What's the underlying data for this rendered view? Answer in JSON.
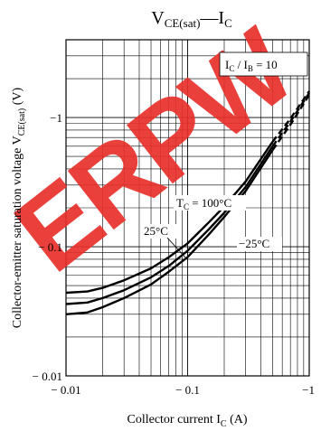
{
  "chart_data": {
    "type": "line",
    "title": "V_CE(sat) — I_C",
    "title_parts": {
      "main": "V",
      "main_sub": "CE(sat)",
      "dash": "—",
      "second": "I",
      "second_sub": "C"
    },
    "xlabel": "Collector current  I_C  (A)",
    "xlabel_parts": {
      "text": "Collector current  I",
      "sub": "C",
      "unit": "  (A)"
    },
    "ylabel": "Collector-emitter saturation voltage  V_CE(sat)  (V)",
    "ylabel_parts": {
      "text": "Collector-emitter saturation voltage  V",
      "sub": "CE(sat)",
      "unit": "  (V)"
    },
    "x_scale": "log",
    "y_scale": "log",
    "xlim": [
      -0.01,
      -1
    ],
    "ylim": [
      -0.01,
      -4
    ],
    "x_ticks": [
      -0.01,
      -0.1,
      -1
    ],
    "x_tick_labels": [
      "− 0.01",
      "− 0.1",
      "−1"
    ],
    "y_ticks": [
      -0.01,
      -0.1,
      -1
    ],
    "y_tick_labels": [
      "− 0.01",
      "− 0.1",
      "−1"
    ],
    "grid": true,
    "condition_parts": {
      "i1": "I",
      "i1_sub": "C",
      "slash": " / ",
      "i2": "I",
      "i2_sub": "B",
      "rest": " = 10"
    },
    "annotations": {
      "tc100": {
        "prefix": "T",
        "prefix_sub": "C",
        "text": " = 100°C"
      },
      "tc25": "25°C",
      "tcm25": "−25°C"
    },
    "series": [
      {
        "name": "T_C = 100°C",
        "x": [
          -0.01,
          -0.015,
          -0.02,
          -0.03,
          -0.05,
          -0.07,
          -0.1,
          -0.15,
          -0.2,
          -0.3,
          -0.5
        ],
        "y": [
          -0.044,
          -0.045,
          -0.048,
          -0.055,
          -0.068,
          -0.083,
          -0.106,
          -0.155,
          -0.205,
          -0.32,
          -0.65
        ],
        "extrapolated": {
          "x": [
            -0.5,
            -0.7,
            -1.0
          ],
          "y": [
            -0.65,
            -0.98,
            -1.6
          ]
        }
      },
      {
        "name": "25°C",
        "x": [
          -0.01,
          -0.015,
          -0.02,
          -0.03,
          -0.05,
          -0.07,
          -0.1,
          -0.15,
          -0.2,
          -0.3,
          -0.5
        ],
        "y": [
          -0.036,
          -0.037,
          -0.04,
          -0.046,
          -0.058,
          -0.071,
          -0.093,
          -0.137,
          -0.183,
          -0.29,
          -0.6
        ],
        "extrapolated": {
          "x": [
            -0.5,
            -0.7,
            -1.0
          ],
          "y": [
            -0.6,
            -0.93,
            -1.55
          ]
        }
      },
      {
        "name": "−25°C",
        "x": [
          -0.01,
          -0.015,
          -0.02,
          -0.03,
          -0.05,
          -0.07,
          -0.1,
          -0.15,
          -0.2,
          -0.3,
          -0.5
        ],
        "y": [
          -0.03,
          -0.031,
          -0.034,
          -0.04,
          -0.051,
          -0.064,
          -0.083,
          -0.125,
          -0.17,
          -0.27,
          -0.56
        ],
        "extrapolated": {
          "x": [
            -0.5,
            -0.7,
            -1.0
          ],
          "y": [
            -0.56,
            -0.88,
            -1.5
          ]
        }
      }
    ]
  },
  "watermark": {
    "text": "ERPW",
    "color": "#e8302a"
  },
  "colors": {
    "line": "#000000",
    "grid": "#000000",
    "background": "#ffffff"
  }
}
